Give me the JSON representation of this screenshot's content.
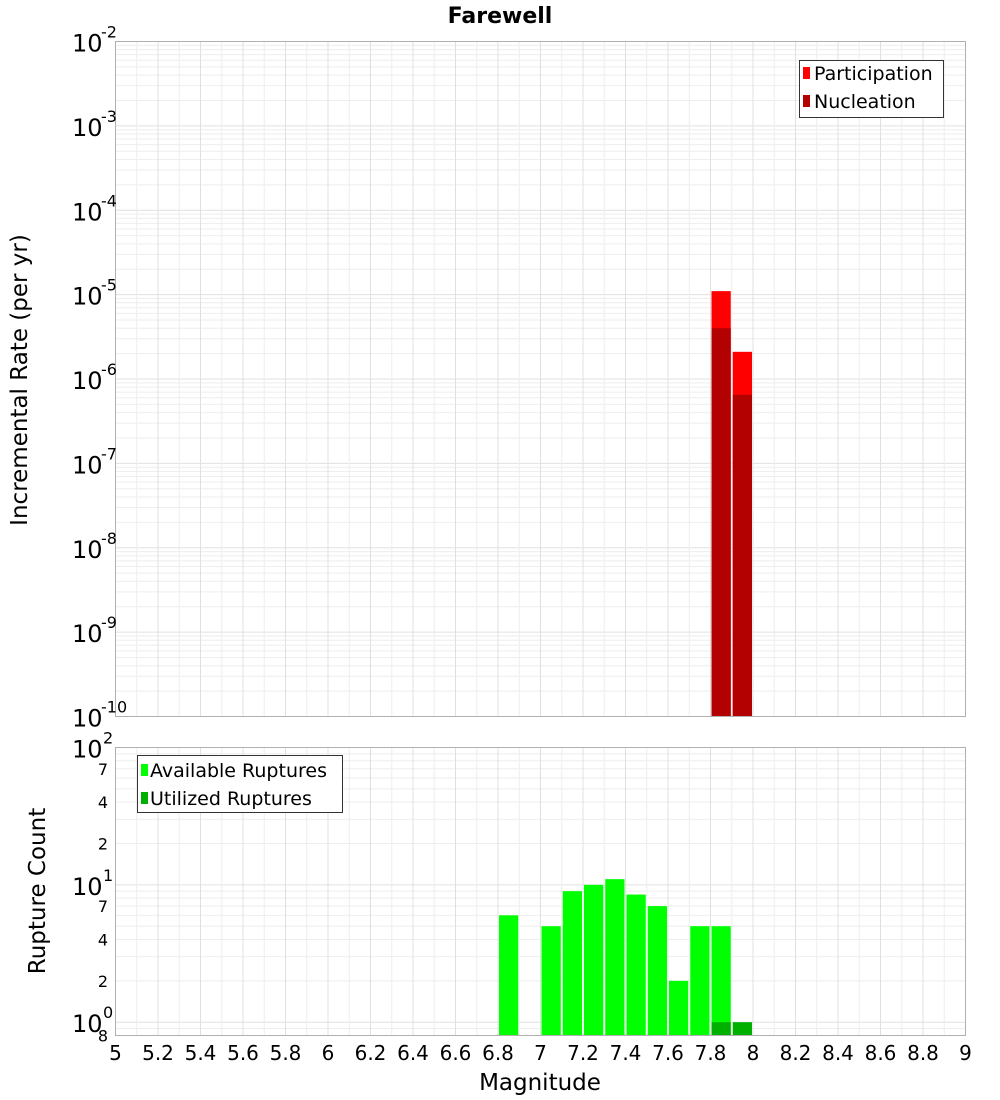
{
  "title": "Farewell",
  "xlabel": "Magnitude",
  "x_ticks": [
    "5",
    "5.2",
    "5.4",
    "5.6",
    "5.8",
    "6",
    "6.2",
    "6.4",
    "6.6",
    "6.8",
    "7",
    "7.2",
    "7.4",
    "7.6",
    "7.8",
    "8",
    "8.2",
    "8.4",
    "8.6",
    "8.8",
    "9"
  ],
  "colors": {
    "participation": "#ff0000",
    "nucleation": "#b30000",
    "available": "#00ff00",
    "utilized": "#00b000"
  },
  "chart_data": [
    {
      "type": "bar",
      "title": "Farewell",
      "ylabel": "Incremental Rate (per yr)",
      "yscale": "log",
      "xlim": [
        5,
        9
      ],
      "ylim": [
        1e-10,
        0.01
      ],
      "y_ticks": [
        {
          "base": "10",
          "exp": "-2",
          "value": 0.01
        },
        {
          "base": "10",
          "exp": "-3",
          "value": 0.001
        },
        {
          "base": "10",
          "exp": "-4",
          "value": 0.0001
        },
        {
          "base": "10",
          "exp": "-5",
          "value": 1e-05
        },
        {
          "base": "10",
          "exp": "-6",
          "value": 1e-06
        },
        {
          "base": "10",
          "exp": "-7",
          "value": 1e-07
        },
        {
          "base": "10",
          "exp": "-8",
          "value": 1e-08
        },
        {
          "base": "10",
          "exp": "-9",
          "value": 1e-09
        },
        {
          "base": "10",
          "exp": "-10",
          "value": 1e-10
        }
      ],
      "legend": {
        "position": "top-right",
        "entries": [
          "Participation",
          "Nucleation"
        ]
      },
      "series": [
        {
          "name": "Participation",
          "x": [
            7.85,
            7.95
          ],
          "values": [
            1.1e-05,
            2.1e-06
          ]
        },
        {
          "name": "Nucleation",
          "x": [
            7.85,
            7.95
          ],
          "values": [
            4e-06,
            6.5e-07
          ]
        }
      ],
      "grid": true
    },
    {
      "type": "bar",
      "ylabel": "Rupture Count",
      "yscale": "log",
      "xlim": [
        5,
        9
      ],
      "ylim": [
        0.8,
        100
      ],
      "y_major_ticks": [
        {
          "base": "10",
          "exp": "2",
          "value": 100
        },
        {
          "base": "10",
          "exp": "1",
          "value": 10
        },
        {
          "base": "10",
          "exp": "0",
          "value": 1
        }
      ],
      "y_minor_ticks": [
        {
          "label": "7",
          "value": 70
        },
        {
          "label": "4",
          "value": 40
        },
        {
          "label": "2",
          "value": 20
        },
        {
          "label": "7",
          "value": 7
        },
        {
          "label": "4",
          "value": 4
        },
        {
          "label": "2",
          "value": 2
        },
        {
          "label": "8",
          "value": 0.8
        }
      ],
      "legend": {
        "position": "top-left",
        "entries": [
          "Available Ruptures",
          "Utilized Ruptures"
        ]
      },
      "series": [
        {
          "name": "Available Ruptures",
          "x": [
            6.85,
            7.05,
            7.15,
            7.25,
            7.35,
            7.45,
            7.55,
            7.65,
            7.75,
            7.85
          ],
          "values": [
            6,
            5,
            9,
            10,
            11,
            8.5,
            7,
            2,
            5,
            5
          ]
        },
        {
          "name": "Utilized Ruptures",
          "x": [
            7.85,
            7.95
          ],
          "values": [
            1,
            1
          ]
        }
      ],
      "grid": true
    }
  ]
}
